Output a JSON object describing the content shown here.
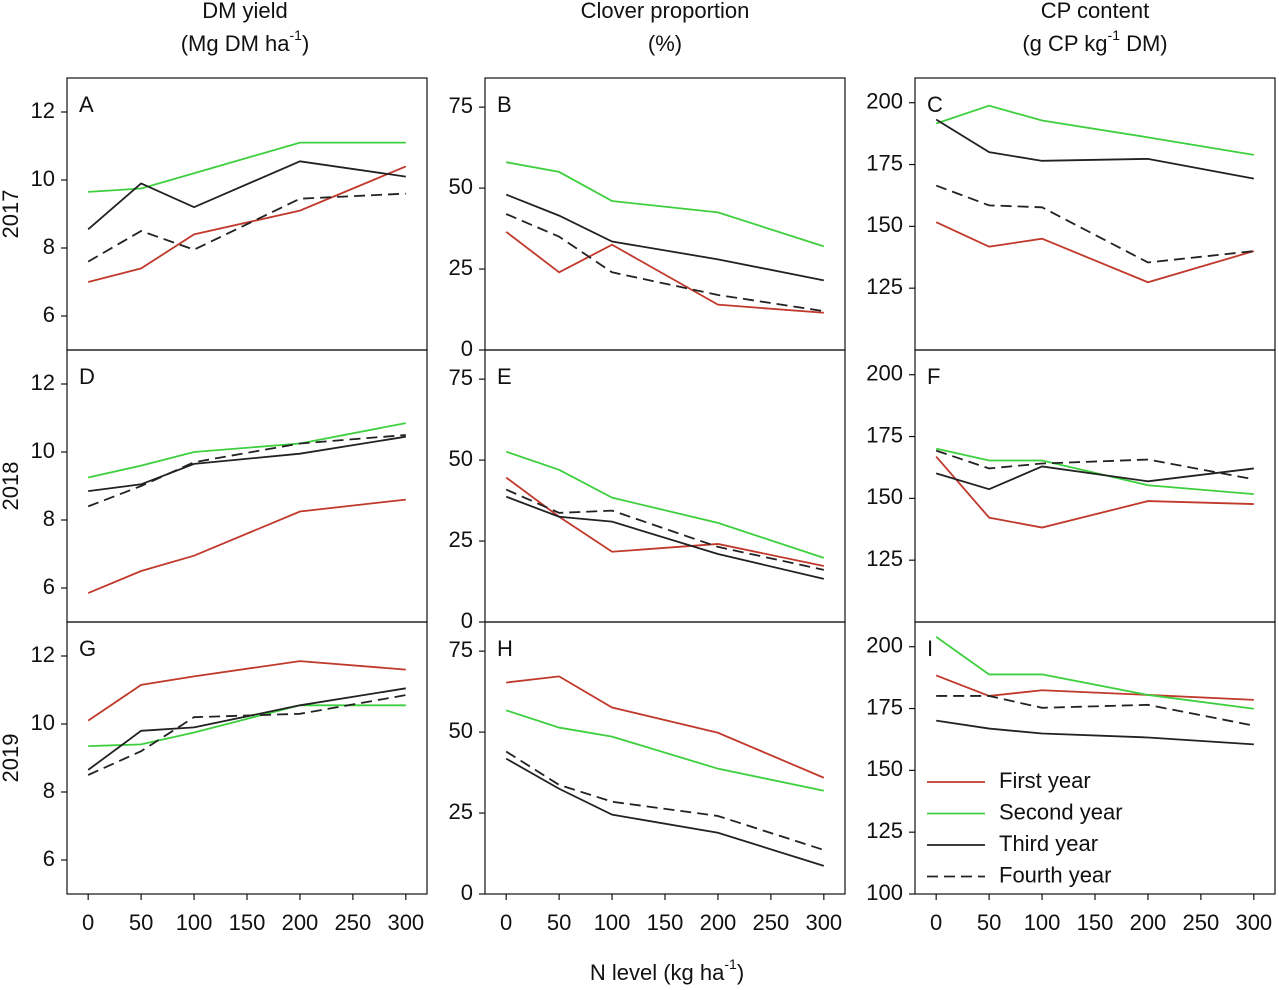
{
  "column_titles": [
    {
      "line1": "DM yield",
      "line2": "(Mg DM ha",
      "sup": "-1",
      "tail": ")"
    },
    {
      "line1": "Clover proportion",
      "line2": "(%)"
    },
    {
      "line1": "CP content",
      "line2": "(g CP kg",
      "sup": "-1",
      "tail": " DM)"
    }
  ],
  "row_labels": [
    "2017",
    "2018",
    "2019"
  ],
  "x_label": {
    "text": "N level (kg ha",
    "sup": "-1",
    "tail": ")"
  },
  "chart_data": [
    {
      "type": "line",
      "label": "A",
      "x": [
        0,
        50,
        100,
        200,
        300
      ],
      "xlim": [
        -20,
        320
      ],
      "ylim": [
        5,
        13
      ],
      "yticks": [
        6,
        8,
        10,
        12
      ],
      "series": [
        {
          "color": "#c0392b",
          "dash": "solid",
          "values": [
            7.0,
            7.4,
            8.4,
            9.1,
            10.4
          ]
        },
        {
          "color": "#3ecf3e",
          "dash": "solid",
          "values": [
            9.65,
            9.75,
            10.2,
            11.1,
            11.1
          ]
        },
        {
          "color": "#222222",
          "dash": "solid",
          "values": [
            8.55,
            9.9,
            9.2,
            10.55,
            10.1
          ]
        },
        {
          "color": "#222222",
          "dash": "dashed",
          "values": [
            7.6,
            8.5,
            7.95,
            9.45,
            9.6
          ]
        }
      ]
    },
    {
      "type": "line",
      "label": "B",
      "x": [
        0,
        50,
        100,
        200,
        300
      ],
      "xlim": [
        -20,
        320
      ],
      "ylim": [
        0,
        84
      ],
      "yticks": [
        0,
        25,
        50,
        75
      ],
      "series": [
        {
          "color": "#c0392b",
          "dash": "solid",
          "values": [
            36.5,
            24,
            32.5,
            14,
            11.5
          ]
        },
        {
          "color": "#3ecf3e",
          "dash": "solid",
          "values": [
            58,
            55,
            46,
            42.5,
            32
          ]
        },
        {
          "color": "#222222",
          "dash": "solid",
          "values": [
            48,
            41.5,
            33.5,
            28,
            21.5
          ]
        },
        {
          "color": "#222222",
          "dash": "dashed",
          "values": [
            42,
            35,
            24,
            17,
            12
          ]
        }
      ]
    },
    {
      "type": "line",
      "label": "C",
      "x": [
        0,
        50,
        100,
        200,
        300
      ],
      "xlim": [
        -20,
        320
      ],
      "ylim": [
        100,
        210
      ],
      "yticks": [
        125,
        150,
        175,
        200
      ],
      "series": [
        {
          "color": "#c0392b",
          "dash": "solid",
          "values": [
            151.7,
            141.8,
            145,
            127.4,
            140
          ]
        },
        {
          "color": "#3ecf3e",
          "dash": "solid",
          "values": [
            191.6,
            198.8,
            192.8,
            186,
            178.9
          ]
        },
        {
          "color": "#222222",
          "dash": "solid",
          "values": [
            193.2,
            180,
            176.5,
            177.3,
            169.3
          ]
        },
        {
          "color": "#222222",
          "dash": "dashed",
          "values": [
            166.5,
            158.5,
            157.7,
            135.4,
            140
          ]
        }
      ]
    },
    {
      "type": "line",
      "label": "D",
      "x": [
        0,
        50,
        100,
        200,
        300
      ],
      "xlim": [
        -20,
        320
      ],
      "ylim": [
        5,
        13
      ],
      "yticks": [
        6,
        8,
        10,
        12
      ],
      "series": [
        {
          "color": "#c0392b",
          "dash": "solid",
          "values": [
            5.85,
            6.5,
            6.95,
            8.25,
            8.6
          ]
        },
        {
          "color": "#3ecf3e",
          "dash": "solid",
          "values": [
            9.25,
            9.6,
            10.0,
            10.25,
            10.85
          ]
        },
        {
          "color": "#222222",
          "dash": "solid",
          "values": [
            8.85,
            9.05,
            9.65,
            9.95,
            10.45
          ]
        },
        {
          "color": "#222222",
          "dash": "dashed",
          "values": [
            8.4,
            9.0,
            9.7,
            10.25,
            10.5
          ]
        }
      ]
    },
    {
      "type": "line",
      "label": "E",
      "x": [
        0,
        50,
        100,
        200,
        300
      ],
      "xlim": [
        -20,
        320
      ],
      "ylim": [
        0,
        84
      ],
      "yticks": [
        0,
        25,
        50,
        75
      ],
      "series": [
        {
          "color": "#c0392b",
          "dash": "solid",
          "values": [
            44.6,
            32.5,
            21.7,
            24.1,
            17.3
          ]
        },
        {
          "color": "#3ecf3e",
          "dash": "solid",
          "values": [
            52.6,
            47,
            38.4,
            30.6,
            19.8
          ]
        },
        {
          "color": "#222222",
          "dash": "solid",
          "values": [
            38.7,
            32.5,
            31,
            21,
            13.3
          ]
        },
        {
          "color": "#222222",
          "dash": "dashed",
          "values": [
            40.9,
            33.7,
            34.4,
            23.2,
            16.1
          ]
        }
      ]
    },
    {
      "type": "line",
      "label": "F",
      "x": [
        0,
        50,
        100,
        200,
        300
      ],
      "xlim": [
        -20,
        320
      ],
      "ylim": [
        100,
        210
      ],
      "yticks": [
        125,
        150,
        175,
        200
      ],
      "series": [
        {
          "color": "#c0392b",
          "dash": "solid",
          "values": [
            166.9,
            142.2,
            138.2,
            148.9,
            147.7
          ]
        },
        {
          "color": "#3ecf3e",
          "dash": "solid",
          "values": [
            170.1,
            165.3,
            165.3,
            155.3,
            151.7
          ]
        },
        {
          "color": "#222222",
          "dash": "solid",
          "values": [
            160.1,
            153.7,
            162.9,
            156.9,
            162.1
          ]
        },
        {
          "color": "#222222",
          "dash": "dashed",
          "values": [
            169.3,
            162.1,
            164.1,
            165.7,
            157.7
          ]
        }
      ]
    },
    {
      "type": "line",
      "label": "G",
      "x": [
        0,
        50,
        100,
        200,
        300
      ],
      "xlim": [
        -20,
        320
      ],
      "ylim": [
        5,
        13
      ],
      "yticks": [
        6,
        8,
        10,
        12
      ],
      "xticks": [
        0,
        50,
        100,
        150,
        200,
        250,
        300
      ],
      "series": [
        {
          "color": "#c0392b",
          "dash": "solid",
          "values": [
            10.1,
            11.15,
            11.4,
            11.85,
            11.6
          ]
        },
        {
          "color": "#3ecf3e",
          "dash": "solid",
          "values": [
            9.35,
            9.4,
            9.75,
            10.55,
            10.55
          ]
        },
        {
          "color": "#222222",
          "dash": "solid",
          "values": [
            8.65,
            9.8,
            9.9,
            10.55,
            11.05
          ]
        },
        {
          "color": "#222222",
          "dash": "dashed",
          "values": [
            8.5,
            9.2,
            10.2,
            10.3,
            10.85
          ]
        }
      ]
    },
    {
      "type": "line",
      "label": "H",
      "x": [
        0,
        50,
        100,
        200,
        300
      ],
      "xlim": [
        -20,
        320
      ],
      "ylim": [
        0,
        84
      ],
      "yticks": [
        0,
        25,
        50,
        75
      ],
      "xticks": [
        0,
        50,
        100,
        150,
        200,
        250,
        300
      ],
      "series": [
        {
          "color": "#c0392b",
          "dash": "solid",
          "values": [
            65.3,
            67.2,
            57.6,
            49.8,
            35.9
          ]
        },
        {
          "color": "#3ecf3e",
          "dash": "solid",
          "values": [
            56.7,
            51.4,
            48.6,
            38.7,
            31.9
          ]
        },
        {
          "color": "#222222",
          "dash": "solid",
          "values": [
            41.8,
            32.5,
            24.5,
            18.9,
            8.7
          ]
        },
        {
          "color": "#222222",
          "dash": "dashed",
          "values": [
            44,
            33.7,
            28.5,
            24.1,
            13.6
          ]
        }
      ]
    },
    {
      "type": "line",
      "label": "I",
      "x": [
        0,
        50,
        100,
        200,
        300
      ],
      "xlim": [
        -20,
        320
      ],
      "ylim": [
        100,
        210
      ],
      "yticks": [
        100,
        125,
        150,
        175,
        200
      ],
      "xticks": [
        0,
        50,
        100,
        150,
        200,
        250,
        300
      ],
      "legend": "lower left",
      "series": [
        {
          "name": "First year",
          "color": "#c0392b",
          "dash": "solid",
          "values": [
            188.4,
            180.1,
            182.4,
            180.5,
            178.5
          ]
        },
        {
          "name": "Second year",
          "color": "#3ecf3e",
          "dash": "solid",
          "values": [
            204,
            188.8,
            188.8,
            180.5,
            174.9
          ]
        },
        {
          "name": "Third year",
          "color": "#222222",
          "dash": "solid",
          "values": [
            170.1,
            166.9,
            164.9,
            163.3,
            160.5
          ]
        },
        {
          "name": "Fourth year",
          "color": "#222222",
          "dash": "dashed",
          "values": [
            180.1,
            180.1,
            175.3,
            176.5,
            168.1
          ]
        }
      ]
    }
  ]
}
